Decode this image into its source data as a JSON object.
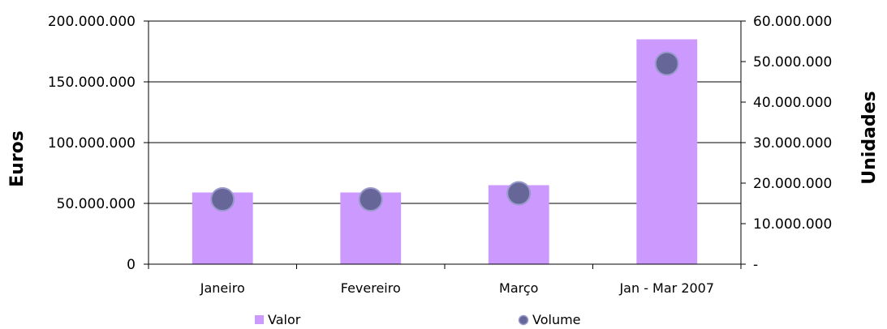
{
  "chart_data": {
    "type": "bar",
    "categories": [
      "Janeiro",
      "Fevereiro",
      "Março",
      "Jan - Mar 2007"
    ],
    "series": [
      {
        "name": "Valor",
        "type": "bar",
        "axis": "left",
        "values": [
          59000000,
          59000000,
          65000000,
          185000000
        ],
        "color": "#cc99ff"
      },
      {
        "name": "Volume",
        "type": "marker",
        "axis": "right",
        "values": [
          16000000,
          16000000,
          17500000,
          49500000
        ],
        "color": "#666699",
        "edge_color": "#9999cc"
      }
    ],
    "ylabel": "Euros",
    "y2label": "Unidades",
    "ylim": [
      0,
      200000000
    ],
    "y2lim": [
      0,
      60000000
    ],
    "yticks": [
      "0",
      "50.000.000",
      "100.000.000",
      "150.000.000",
      "200.000.000"
    ],
    "y2ticks": [
      "-",
      "10.000.000",
      "20.000.000",
      "30.000.000",
      "40.000.000",
      "50.000.000",
      "60.000.000"
    ],
    "grid": true,
    "legend_position": "bottom"
  }
}
